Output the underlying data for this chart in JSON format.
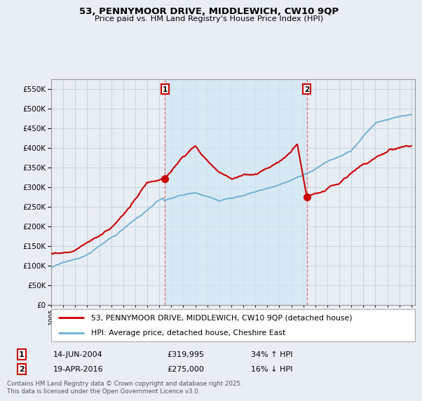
{
  "title": "53, PENNYMOOR DRIVE, MIDDLEWICH, CW10 9QP",
  "subtitle": "Price paid vs. HM Land Registry's House Price Index (HPI)",
  "ylim": [
    0,
    575000
  ],
  "yticks": [
    0,
    50000,
    100000,
    150000,
    200000,
    250000,
    300000,
    350000,
    400000,
    450000,
    500000,
    550000
  ],
  "legend_line1": "53, PENNYMOOR DRIVE, MIDDLEWICH, CW10 9QP (detached house)",
  "legend_line2": "HPI: Average price, detached house, Cheshire East",
  "annotation1_date": "14-JUN-2004",
  "annotation1_price": "£319,995",
  "annotation1_hpi": "34% ↑ HPI",
  "annotation2_date": "19-APR-2016",
  "annotation2_price": "£275,000",
  "annotation2_hpi": "16% ↓ HPI",
  "footer": "Contains HM Land Registry data © Crown copyright and database right 2025.\nThis data is licensed under the Open Government Licence v3.0.",
  "red_color": "#cc0000",
  "blue_color": "#6aaed6",
  "blue_fill_color": "#d0e8f5",
  "bg_color": "#e8eef4",
  "plot_bg": "#e8eef4",
  "grid_color": "#c8d4e0",
  "dashed_color": "#e07070"
}
